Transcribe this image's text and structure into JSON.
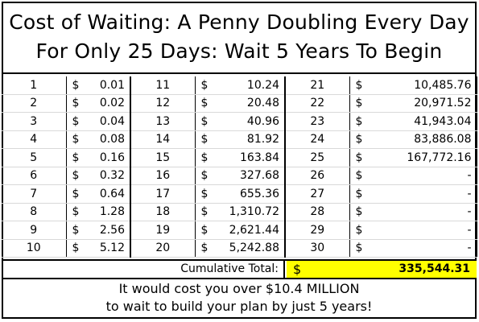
{
  "title": {
    "line1": "Cost of Waiting: A Penny Doubling Every Day",
    "line2": "For Only 25 Days: Wait 5 Years To Begin"
  },
  "currency_symbol": "$",
  "rows": [
    {
      "d1": "1",
      "a1": "0.01",
      "d2": "11",
      "a2": "10.24",
      "d3": "21",
      "a3": "10,485.76"
    },
    {
      "d1": "2",
      "a1": "0.02",
      "d2": "12",
      "a2": "20.48",
      "d3": "22",
      "a3": "20,971.52"
    },
    {
      "d1": "3",
      "a1": "0.04",
      "d2": "13",
      "a2": "40.96",
      "d3": "23",
      "a3": "41,943.04"
    },
    {
      "d1": "4",
      "a1": "0.08",
      "d2": "14",
      "a2": "81.92",
      "d3": "24",
      "a3": "83,886.08"
    },
    {
      "d1": "5",
      "a1": "0.16",
      "d2": "15",
      "a2": "163.84",
      "d3": "25",
      "a3": "167,772.16"
    },
    {
      "d1": "6",
      "a1": "0.32",
      "d2": "16",
      "a2": "327.68",
      "d3": "26",
      "a3": "-"
    },
    {
      "d1": "7",
      "a1": "0.64",
      "d2": "17",
      "a2": "655.36",
      "d3": "27",
      "a3": "-"
    },
    {
      "d1": "8",
      "a1": "1.28",
      "d2": "18",
      "a2": "1,310.72",
      "d3": "28",
      "a3": "-"
    },
    {
      "d1": "9",
      "a1": "2.56",
      "d2": "19",
      "a2": "2,621.44",
      "d3": "29",
      "a3": "-"
    },
    {
      "d1": "10",
      "a1": "5.12",
      "d2": "20",
      "a2": "5,242.88",
      "d3": "30",
      "a3": "-"
    }
  ],
  "cumulative": {
    "label": "Cumulative Total:",
    "dollar": "$",
    "value": "335,544.31",
    "highlight_color": "#ffff00"
  },
  "footer": {
    "line1": "It would cost you over $10.4 MILLION",
    "line2": "to wait to build your plan by just 5 years!"
  }
}
